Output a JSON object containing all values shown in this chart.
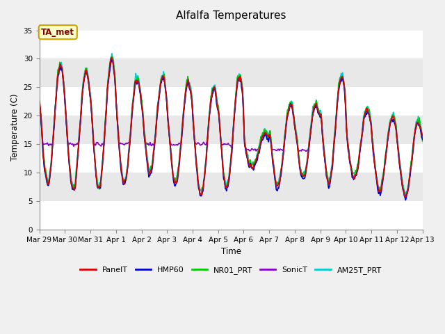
{
  "title": "Alfalfa Temperatures",
  "xlabel": "Time",
  "ylabel": "Temperature (C)",
  "ylim": [
    0,
    36
  ],
  "yticks": [
    0,
    5,
    10,
    15,
    20,
    25,
    30,
    35
  ],
  "background_color": "#f0f0f0",
  "plot_bg_color": "#f0f0f0",
  "band_colors": [
    "#ffffff",
    "#e8e8e8"
  ],
  "annotation_text": "TA_met",
  "annotation_color": "#880000",
  "annotation_bg": "#ffffc8",
  "annotation_border": "#c8a000",
  "series_colors": {
    "PanelT": "#dd0000",
    "HMP60": "#0000cc",
    "NR01_PRT": "#00cc00",
    "SonicT": "#8800cc",
    "AM25T_PRT": "#00cccc"
  },
  "tick_labels": [
    "Mar 29",
    "Mar 30",
    "Mar 31",
    "Apr 1",
    "Apr 2",
    "Apr 3",
    "Apr 4",
    "Apr 5",
    "Apr 6",
    "Apr 7",
    "Apr 8",
    "Apr 9",
    "Apr 10",
    "Apr 11",
    "Apr 12",
    "Apr 13"
  ],
  "num_points": 3000,
  "end_day": 15.0
}
